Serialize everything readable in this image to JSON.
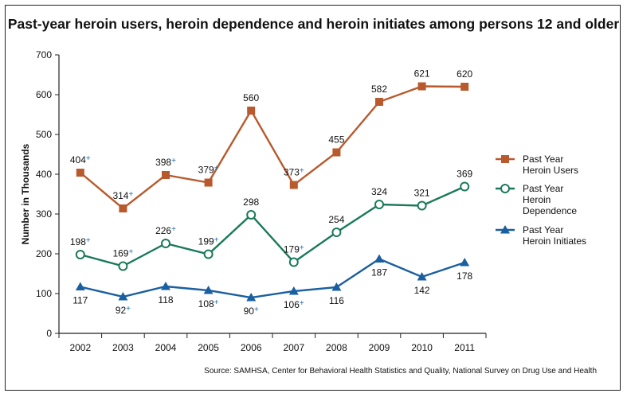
{
  "title": "Past-year heroin users, heroin dependence and heroin initiates among persons 12 and older",
  "source": "Source: SAMHSA, Center for Behavioral Health Statistics and Quality, National Survey on Drug Use and Health",
  "chart_data": {
    "type": "line",
    "title": "Past-year heroin users, heroin dependence and heroin initiates among persons 12 and older",
    "xlabel": "",
    "ylabel": "Number in Thousands",
    "ylim": [
      0,
      700
    ],
    "yticks": [
      0,
      100,
      200,
      300,
      400,
      500,
      600,
      700
    ],
    "x": [
      "2002",
      "2003",
      "2004",
      "2005",
      "2006",
      "2007",
      "2008",
      "2009",
      "2010",
      "2011"
    ],
    "grid": false,
    "legend_position": "right",
    "series": [
      {
        "name_lines": [
          "Past Year",
          "Heroin Users"
        ],
        "color": "#b85a2d",
        "marker": "square",
        "values": [
          404,
          314,
          398,
          379,
          560,
          373,
          455,
          582,
          621,
          620
        ],
        "labels": [
          "404",
          "314",
          "398",
          "379",
          "560",
          "373",
          "455",
          "582",
          "621",
          "620"
        ],
        "significant": [
          true,
          true,
          true,
          true,
          false,
          true,
          false,
          false,
          false,
          false
        ],
        "label_position": [
          "above",
          "above",
          "above",
          "above",
          "above",
          "above",
          "above",
          "above",
          "above",
          "above"
        ]
      },
      {
        "name_lines": [
          "Past Year",
          "Heroin",
          "Dependence"
        ],
        "color": "#1a7a58",
        "marker": "circle-open",
        "values": [
          198,
          169,
          226,
          199,
          298,
          179,
          254,
          324,
          321,
          369
        ],
        "labels": [
          "198",
          "169",
          "226",
          "199",
          "298",
          "179",
          "254",
          "324",
          "321",
          "369"
        ],
        "significant": [
          true,
          true,
          true,
          true,
          false,
          true,
          false,
          false,
          false,
          false
        ],
        "label_position": [
          "above",
          "above",
          "above",
          "above",
          "above",
          "above",
          "above",
          "above",
          "above",
          "above"
        ]
      },
      {
        "name_lines": [
          "Past Year",
          "Heroin Initiates"
        ],
        "color": "#1a5fa0",
        "marker": "triangle",
        "values": [
          117,
          92,
          118,
          108,
          90,
          106,
          116,
          187,
          142,
          178
        ],
        "labels": [
          "117",
          "92",
          "118",
          "108",
          "90",
          "106",
          "116",
          "187",
          "142",
          "178"
        ],
        "significant": [
          false,
          true,
          false,
          true,
          true,
          true,
          false,
          false,
          false,
          false
        ],
        "label_position": [
          "below",
          "below",
          "below",
          "below",
          "below",
          "below",
          "below",
          "below",
          "below",
          "below"
        ]
      }
    ],
    "significance_marker": "+"
  }
}
